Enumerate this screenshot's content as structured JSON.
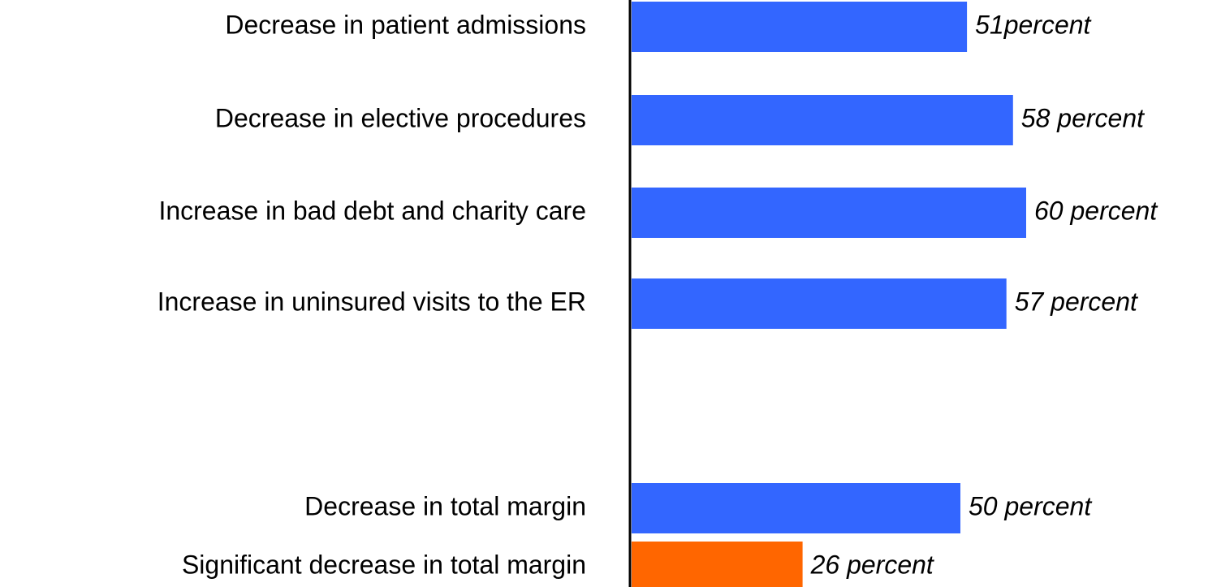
{
  "chart_data": {
    "type": "bar",
    "orientation": "horizontal",
    "categories": [
      "Decrease in patient admissions",
      "Decrease in elective procedures",
      "Increase in bad debt and charity care",
      "Increase in uninsured visits to the ER",
      "Decrease in total margin",
      "Significant decrease in total margin"
    ],
    "values": [
      51,
      58,
      60,
      57,
      50,
      26
    ],
    "value_labels": [
      "51percent",
      "58 percent",
      "60 percent",
      "57 percent",
      "50 percent",
      "26 percent"
    ],
    "colors": [
      "#3366ff",
      "#3366ff",
      "#3366ff",
      "#3366ff",
      "#3366ff",
      "#ff6600"
    ]
  }
}
